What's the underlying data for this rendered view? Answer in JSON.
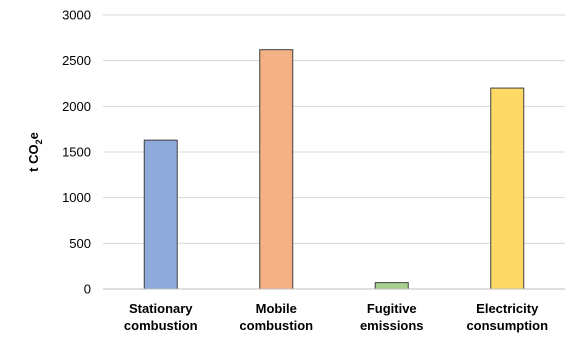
{
  "chart_data": {
    "type": "bar",
    "title": "",
    "xlabel": "",
    "ylabel": "t CO2e",
    "ylabel_main": "t CO",
    "ylabel_subscript": "2",
    "ylabel_suffix": "e",
    "categories": [
      "Stationary combustion",
      "Mobile combustion",
      "Fugitive emissions",
      "Electricity consumption"
    ],
    "category_lines": [
      [
        "Stationary",
        "combustion"
      ],
      [
        "Mobile",
        "combustion"
      ],
      [
        "Fugitive",
        "emissions"
      ],
      [
        "Electricity",
        "consumption"
      ]
    ],
    "values": [
      1630,
      2620,
      70,
      2200
    ],
    "colors": [
      "#8eaadb",
      "#f4b183",
      "#a9d18e",
      "#ffd966"
    ],
    "ylim": [
      0,
      3000
    ],
    "yticks": [
      0,
      500,
      1000,
      1500,
      2000,
      2500,
      3000
    ],
    "grid": true,
    "legend": "none"
  }
}
